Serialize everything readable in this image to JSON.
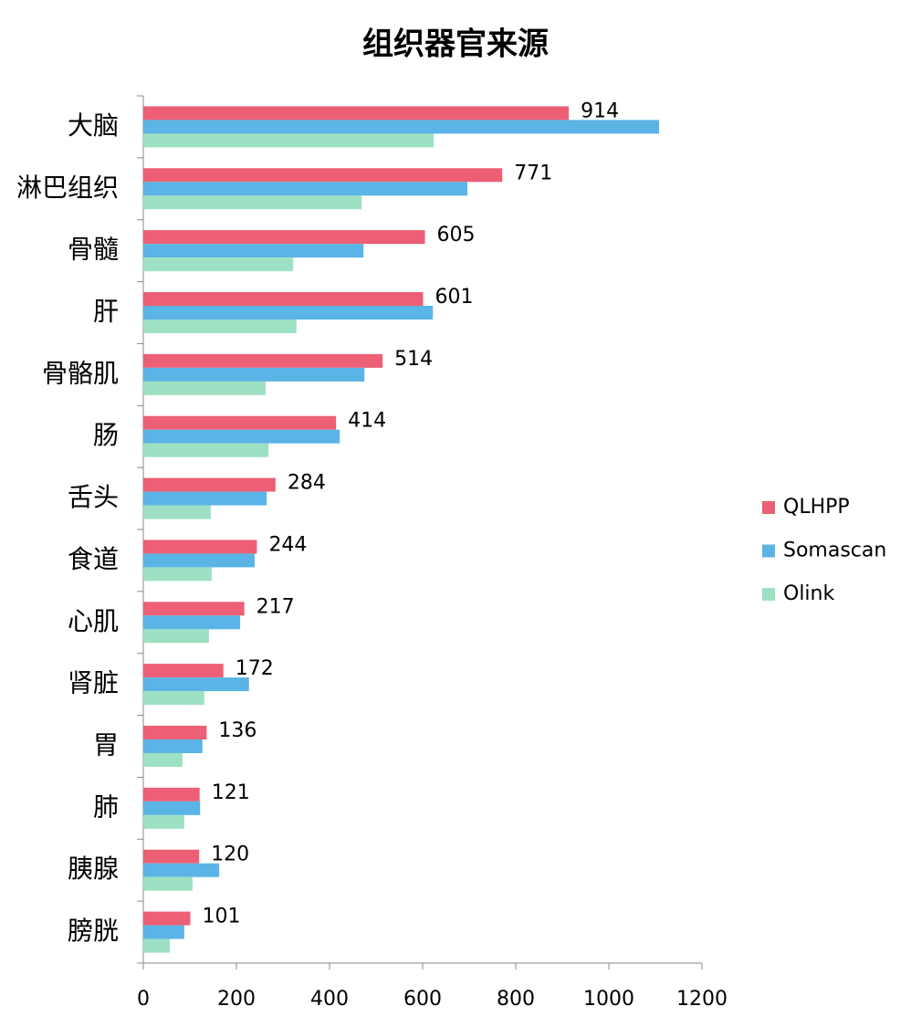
{
  "chart_data": {
    "type": "barh",
    "title": "组织器官来源",
    "categories": [
      "大脑",
      "淋巴组织",
      "骨髓",
      "肝",
      "骨骼肌",
      "肠",
      "舌头",
      "食道",
      "心肌",
      "肾脏",
      "胃",
      "肺",
      "胰腺",
      "膀胱"
    ],
    "series": [
      {
        "name": "QLHPP",
        "color": "#ec5f74",
        "values": [
          914,
          771,
          605,
          601,
          514,
          414,
          284,
          244,
          217,
          172,
          136,
          121,
          120,
          101
        ],
        "labels": true
      },
      {
        "name": "Somascan",
        "color": "#5ab4e5",
        "values": [
          1108,
          696,
          473,
          622,
          475,
          422,
          265,
          239,
          208,
          227,
          127,
          122,
          163,
          88
        ]
      },
      {
        "name": "Olink",
        "color": "#9ee0c3",
        "values": [
          624,
          469,
          322,
          329,
          263,
          269,
          145,
          147,
          141,
          131,
          84,
          88,
          106,
          57
        ]
      }
    ],
    "xlim": [
      0,
      1200
    ],
    "xticks": [
      0,
      200,
      400,
      600,
      800,
      1000,
      1200
    ],
    "legend": "right",
    "grid": false
  }
}
